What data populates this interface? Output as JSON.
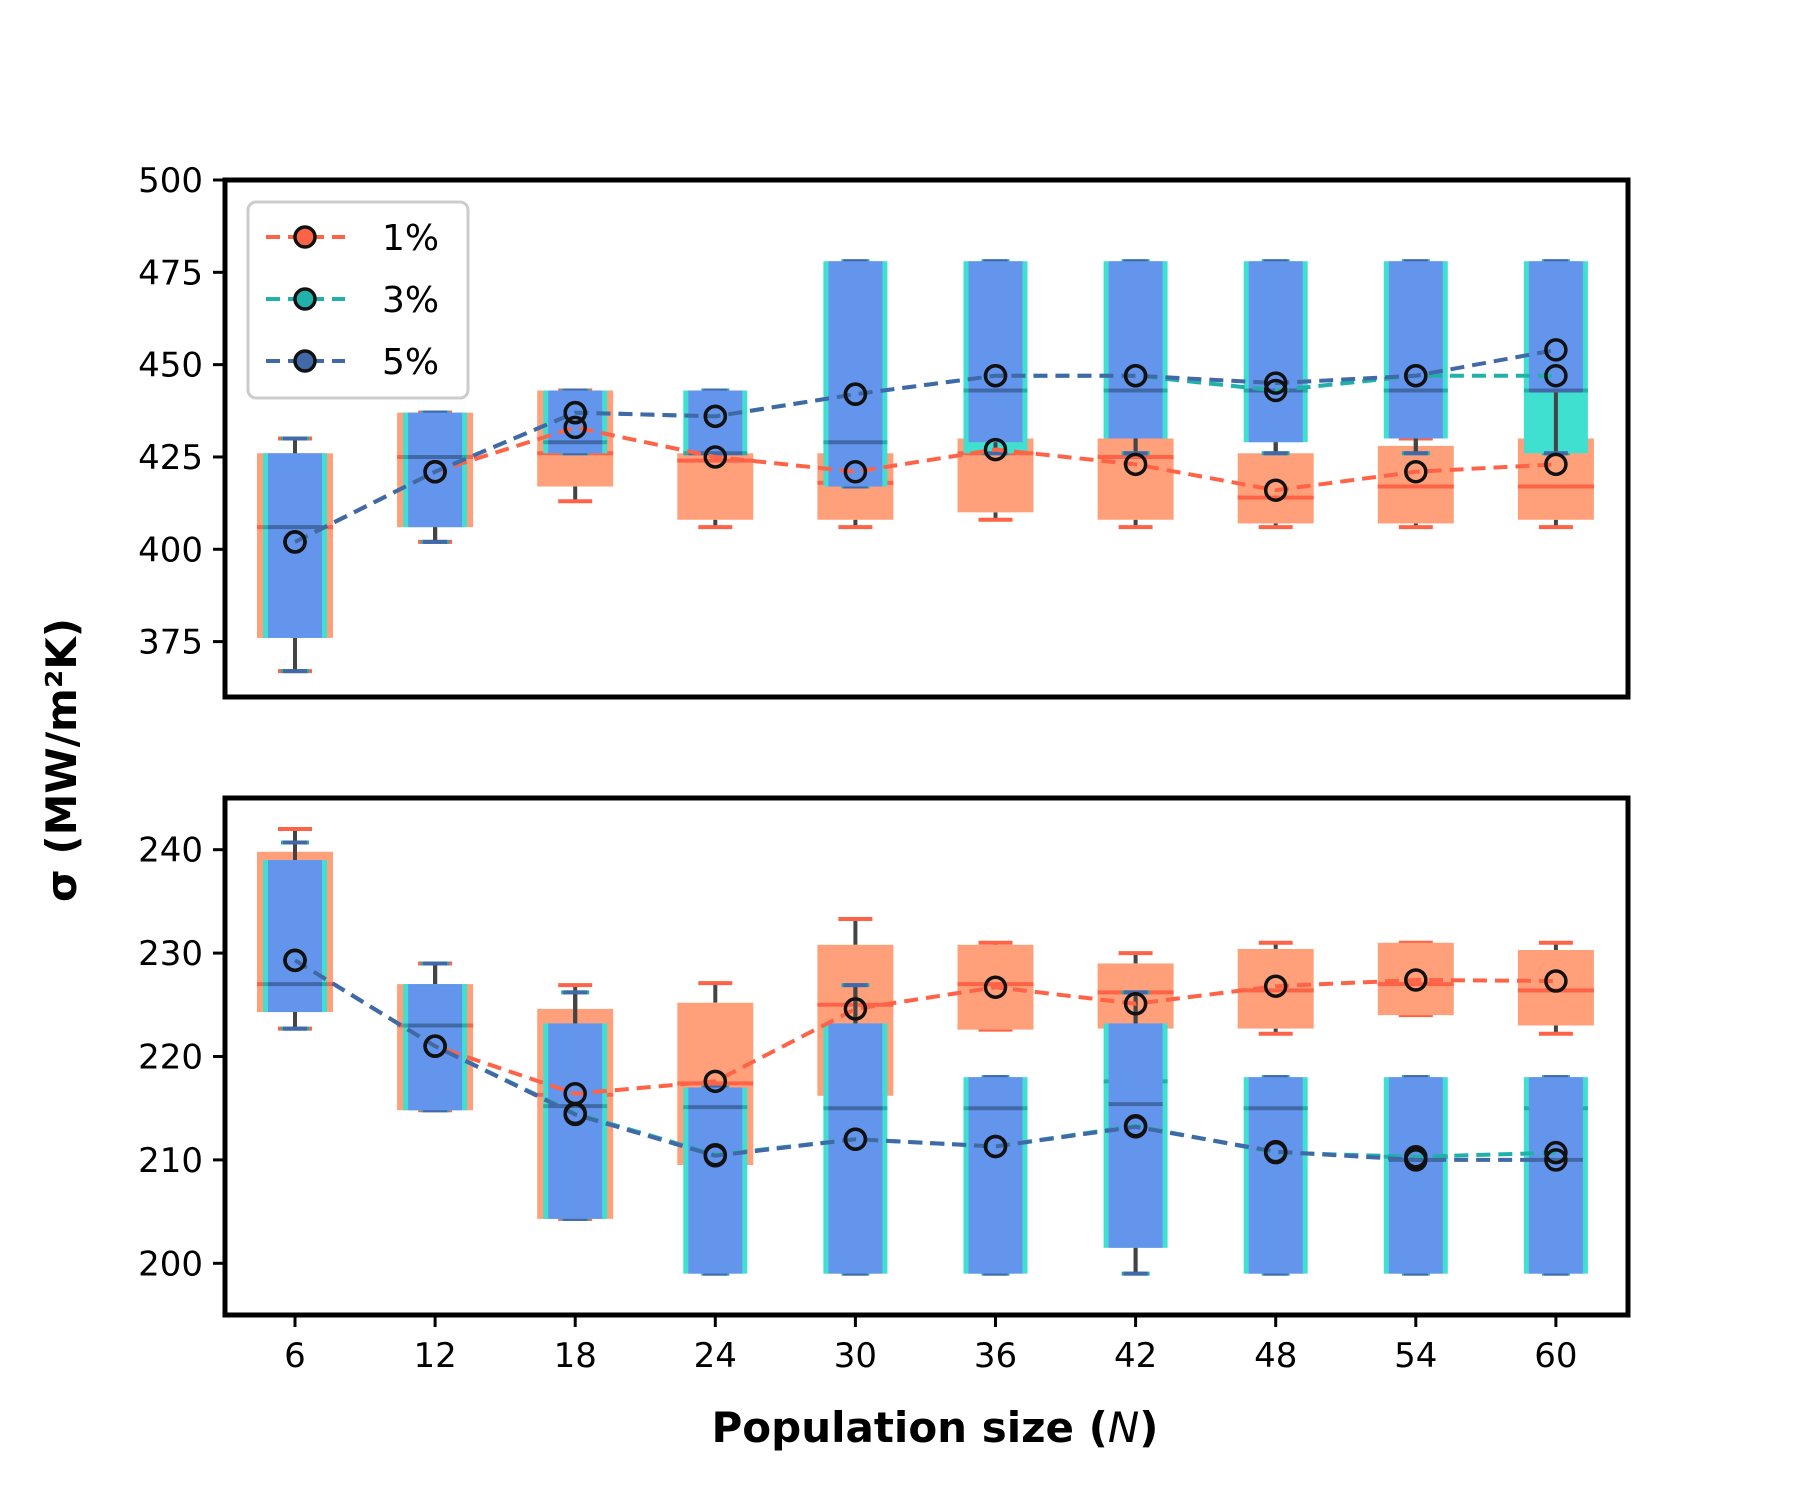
{
  "chart_data": {
    "type": "box",
    "xlabel": "Population size (",
    "xlabel_var": "N",
    "xlabel_end": ")",
    "ylabel": "σ (MW/m²K)",
    "x": [
      6,
      12,
      18,
      24,
      30,
      36,
      42,
      48,
      54,
      60
    ],
    "x_tick_labels": [
      "6",
      "12",
      "18",
      "24",
      "30",
      "36",
      "42",
      "48",
      "54",
      "60"
    ],
    "legend": {
      "placement": "top-left",
      "entries": [
        "1%",
        "3%",
        "5%"
      ]
    },
    "colors": {
      "1%": {
        "box": "#FFA07A",
        "line": "#FF6347"
      },
      "3%": {
        "box": "#40E0D0",
        "line": "#20B2AA"
      },
      "5%": {
        "box": "#6495ED",
        "line": "#4169A8"
      }
    },
    "panels": [
      {
        "ylim": [
          360,
          500
        ],
        "yticks": [
          375,
          400,
          425,
          450,
          475,
          500
        ],
        "ytick_labels": [
          "375",
          "400",
          "425",
          "450",
          "475",
          "500"
        ],
        "series": [
          {
            "name": "1%",
            "means": [
              402,
              421,
              433,
              425,
              421,
              427,
              423,
              416,
              421,
              423
            ],
            "boxes": [
              {
                "q1": 376,
                "med": 406,
                "q3": 426,
                "lo": 367,
                "hi": 430
              },
              {
                "q1": 406,
                "med": 425,
                "q3": 437,
                "lo": 402,
                "hi": 437
              },
              {
                "q1": 417,
                "med": 426,
                "q3": 443,
                "lo": 413,
                "hi": 443
              },
              {
                "q1": 408,
                "med": 424,
                "q3": 426,
                "lo": 406,
                "hi": 430
              },
              {
                "q1": 408,
                "med": 418,
                "q3": 426,
                "lo": 406,
                "hi": 430
              },
              {
                "q1": 410,
                "med": 426,
                "q3": 430,
                "lo": 408,
                "hi": 430
              },
              {
                "q1": 408,
                "med": 425,
                "q3": 430,
                "lo": 406,
                "hi": 430
              },
              {
                "q1": 407,
                "med": 414,
                "q3": 426,
                "lo": 406,
                "hi": 430
              },
              {
                "q1": 407,
                "med": 417,
                "q3": 428,
                "lo": 406,
                "hi": 430
              },
              {
                "q1": 408,
                "med": 417,
                "q3": 430,
                "lo": 406,
                "hi": 430
              }
            ]
          },
          {
            "name": "3%",
            "means": [
              402,
              421,
              437,
              436,
              442,
              447,
              447,
              443,
              447,
              447
            ],
            "boxes": [
              {
                "q1": 376,
                "med": 406,
                "q3": 426,
                "lo": 367,
                "hi": 430
              },
              {
                "q1": 406,
                "med": 425,
                "q3": 437,
                "lo": 402,
                "hi": 437
              },
              {
                "q1": 426,
                "med": 429,
                "q3": 443,
                "lo": 426,
                "hi": 443
              },
              {
                "q1": 426,
                "med": 426,
                "q3": 443,
                "lo": 426,
                "hi": 443
              },
              {
                "q1": 417,
                "med": 429,
                "q3": 478,
                "lo": 417,
                "hi": 478
              },
              {
                "q1": 426,
                "med": 443,
                "q3": 478,
                "lo": 426,
                "hi": 478
              },
              {
                "q1": 430,
                "med": 443,
                "q3": 478,
                "lo": 426,
                "hi": 478
              },
              {
                "q1": 429,
                "med": 443,
                "q3": 478,
                "lo": 426,
                "hi": 478
              },
              {
                "q1": 430,
                "med": 443,
                "q3": 478,
                "lo": 426,
                "hi": 478
              },
              {
                "q1": 426,
                "med": 443,
                "q3": 478,
                "lo": 426,
                "hi": 478
              }
            ]
          },
          {
            "name": "5%",
            "means": [
              402,
              421,
              437,
              436,
              442,
              447,
              447,
              445,
              447,
              454
            ],
            "boxes": [
              {
                "q1": 376,
                "med": 406,
                "q3": 426,
                "lo": 367,
                "hi": 430
              },
              {
                "q1": 406,
                "med": 425,
                "q3": 437,
                "lo": 402,
                "hi": 437
              },
              {
                "q1": 426,
                "med": 429,
                "q3": 443,
                "lo": 426,
                "hi": 443
              },
              {
                "q1": 426,
                "med": 426,
                "q3": 443,
                "lo": 426,
                "hi": 443
              },
              {
                "q1": 417,
                "med": 429,
                "q3": 478,
                "lo": 417,
                "hi": 478
              },
              {
                "q1": 429,
                "med": 443,
                "q3": 478,
                "lo": 426,
                "hi": 478
              },
              {
                "q1": 430,
                "med": 443,
                "q3": 478,
                "lo": 426,
                "hi": 478
              },
              {
                "q1": 429,
                "med": 443,
                "q3": 478,
                "lo": 426,
                "hi": 478
              },
              {
                "q1": 430,
                "med": 443,
                "q3": 478,
                "lo": 426,
                "hi": 478
              },
              {
                "q1": 443,
                "med": 443,
                "q3": 478,
                "lo": 426,
                "hi": 478
              }
            ]
          }
        ]
      },
      {
        "ylim": [
          195,
          245
        ],
        "yticks": [
          200,
          210,
          220,
          230,
          240
        ],
        "ytick_labels": [
          "200",
          "210",
          "220",
          "230",
          "240"
        ],
        "series": [
          {
            "name": "1%",
            "means": [
              229.3,
              221,
              216.4,
              217.6,
              224.6,
              226.7,
              225.1,
              226.8,
              227.4,
              227.3
            ],
            "boxes": [
              {
                "q1": 224.3,
                "med": 227,
                "q3": 239.8,
                "lo": 222.7,
                "hi": 242
              },
              {
                "q1": 214.8,
                "med": 223,
                "q3": 227,
                "lo": 214.8,
                "hi": 229
              },
              {
                "q1": 204.3,
                "med": 216.3,
                "q3": 224.6,
                "lo": 204.3,
                "hi": 226.9
              },
              {
                "q1": 209.5,
                "med": 217.4,
                "q3": 225.2,
                "lo": 209.5,
                "hi": 227.1
              },
              {
                "q1": 216.2,
                "med": 225,
                "q3": 230.8,
                "lo": 214.8,
                "hi": 233.3
              },
              {
                "q1": 222.6,
                "med": 227,
                "q3": 230.8,
                "lo": 222.6,
                "hi": 231
              },
              {
                "q1": 222.7,
                "med": 226.2,
                "q3": 229,
                "lo": 222.2,
                "hi": 230
              },
              {
                "q1": 222.7,
                "med": 226.4,
                "q3": 230.4,
                "lo": 222.2,
                "hi": 231
              },
              {
                "q1": 224,
                "med": 227,
                "q3": 231,
                "lo": 224,
                "hi": 231
              },
              {
                "q1": 223,
                "med": 226.4,
                "q3": 230.3,
                "lo": 222.2,
                "hi": 231
              }
            ]
          },
          {
            "name": "3%",
            "means": [
              229.3,
              221,
              214.5,
              210.5,
              212,
              211.3,
              213.3,
              210.7,
              210.3,
              210.7
            ],
            "boxes": [
              {
                "q1": 224.3,
                "med": 227,
                "q3": 239,
                "lo": 222.7,
                "hi": 240.7
              },
              {
                "q1": 214.8,
                "med": 223,
                "q3": 227,
                "lo": 214.8,
                "hi": 229
              },
              {
                "q1": 204.3,
                "med": 215.2,
                "q3": 223.2,
                "lo": 204.3,
                "hi": 226.2
              },
              {
                "q1": 199,
                "med": 215.1,
                "q3": 217,
                "lo": 199,
                "hi": 217
              },
              {
                "q1": 199,
                "med": 215,
                "q3": 223.2,
                "lo": 199,
                "hi": 226.9
              },
              {
                "q1": 199,
                "med": 215,
                "q3": 218,
                "lo": 199,
                "hi": 218
              },
              {
                "q1": 201.5,
                "med": 217.6,
                "q3": 223.2,
                "lo": 199,
                "hi": 226.2
              },
              {
                "q1": 199,
                "med": 215,
                "q3": 218,
                "lo": 199,
                "hi": 218
              },
              {
                "q1": 199,
                "med": 210.3,
                "q3": 218,
                "lo": 199,
                "hi": 218
              },
              {
                "q1": 199,
                "med": 215,
                "q3": 218,
                "lo": 199,
                "hi": 218
              }
            ]
          },
          {
            "name": "5%",
            "means": [
              229.3,
              221,
              214.4,
              210.4,
              212,
              211.3,
              213.2,
              210.8,
              210,
              210
            ],
            "boxes": [
              {
                "q1": 224.3,
                "med": 227,
                "q3": 239,
                "lo": 222.7,
                "hi": 240.7
              },
              {
                "q1": 214.8,
                "med": 223,
                "q3": 227,
                "lo": 214.8,
                "hi": 229
              },
              {
                "q1": 204.3,
                "med": 215.2,
                "q3": 223.2,
                "lo": 204.3,
                "hi": 226.2
              },
              {
                "q1": 199,
                "med": 215.1,
                "q3": 217,
                "lo": 199,
                "hi": 217
              },
              {
                "q1": 199,
                "med": 215,
                "q3": 223.2,
                "lo": 199,
                "hi": 226.9
              },
              {
                "q1": 199,
                "med": 215,
                "q3": 218,
                "lo": 199,
                "hi": 218
              },
              {
                "q1": 201.5,
                "med": 215.4,
                "q3": 223.2,
                "lo": 199,
                "hi": 226.2
              },
              {
                "q1": 199,
                "med": 215,
                "q3": 218,
                "lo": 199,
                "hi": 218
              },
              {
                "q1": 199,
                "med": 210,
                "q3": 218,
                "lo": 199,
                "hi": 218
              },
              {
                "q1": 199,
                "med": 210,
                "q3": 218,
                "lo": 199,
                "hi": 218
              }
            ]
          }
        ]
      }
    ]
  }
}
